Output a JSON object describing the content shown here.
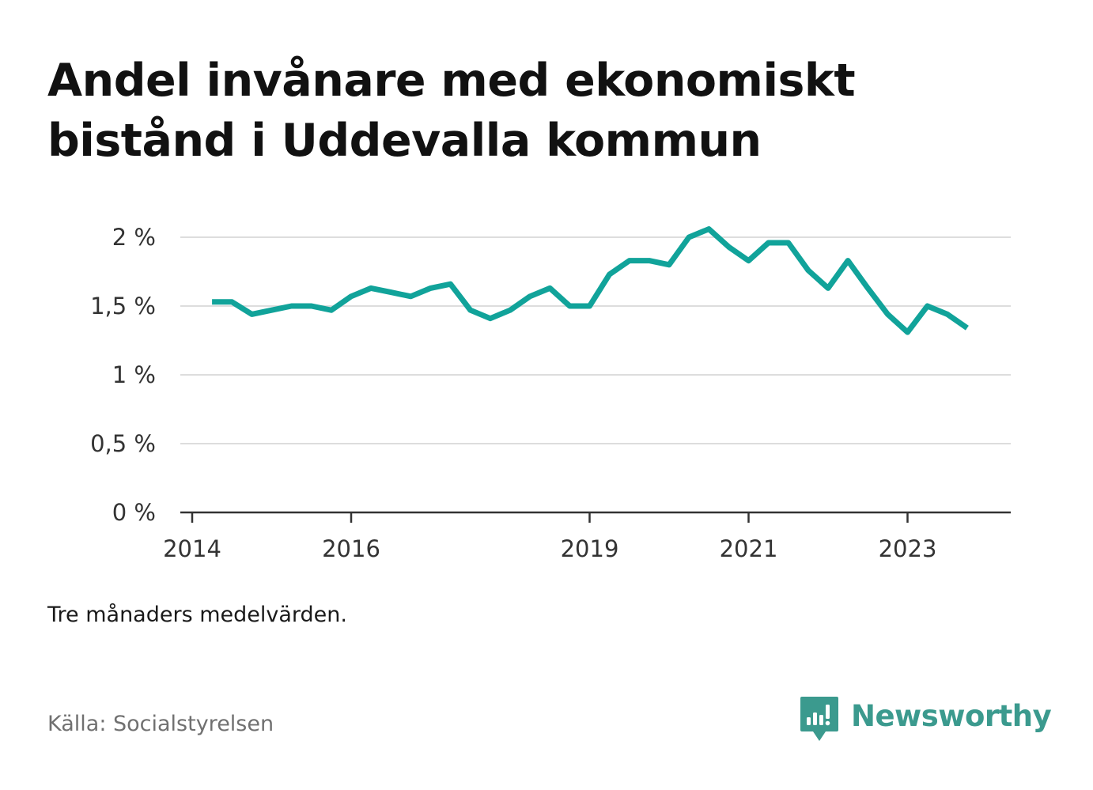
{
  "header": {
    "title_line1": "Andel invånare med ekonomiskt",
    "title_line2": "bistånd i Uddevalla kommun"
  },
  "footer": {
    "note": "Tre månaders medelvärden.",
    "source": "Källa: Socialstyrelsen",
    "brand": "Newsworthy"
  },
  "colors": {
    "line": "#11a39a",
    "grid": "#dddddd",
    "axis": "#333333",
    "brand": "#3b9a8e"
  },
  "chart_data": {
    "type": "line",
    "title": "Andel invånare med ekonomiskt bistånd i Uddevalla kommun",
    "xlabel": "",
    "ylabel": "",
    "ylim": [
      0,
      2.1
    ],
    "xlim": [
      "2014-01",
      "2024-04"
    ],
    "y_ticks": [
      {
        "value": 0,
        "label": "0 %"
      },
      {
        "value": 0.5,
        "label": "0,5 %"
      },
      {
        "value": 1,
        "label": "1 %"
      },
      {
        "value": 1.5,
        "label": "1,5 %"
      },
      {
        "value": 2,
        "label": "2 %"
      }
    ],
    "x_ticks": [
      {
        "date": "2014-01",
        "label": "2014"
      },
      {
        "date": "2016-01",
        "label": "2016"
      },
      {
        "date": "2019-01",
        "label": "2019"
      },
      {
        "date": "2021-01",
        "label": "2021"
      },
      {
        "date": "2023-01",
        "label": "2023"
      }
    ],
    "grid": true,
    "legend": "none",
    "series": [
      {
        "x": [
          "2014-04",
          "2014-07",
          "2014-10",
          "2015-01",
          "2015-04",
          "2015-07",
          "2015-10",
          "2016-01",
          "2016-04",
          "2016-07",
          "2016-10",
          "2017-01",
          "2017-04",
          "2017-07",
          "2017-10",
          "2018-01",
          "2018-04",
          "2018-07",
          "2018-10",
          "2019-01",
          "2019-04",
          "2019-07",
          "2019-10",
          "2020-01",
          "2020-04",
          "2020-07",
          "2020-10",
          "2021-01",
          "2021-04",
          "2021-07",
          "2021-10",
          "2022-01",
          "2022-04",
          "2022-07",
          "2022-10",
          "2023-01",
          "2023-04",
          "2023-07",
          "2023-10"
        ],
        "values": [
          1.53,
          1.53,
          1.44,
          1.47,
          1.5,
          1.5,
          1.47,
          1.57,
          1.63,
          1.6,
          1.57,
          1.63,
          1.66,
          1.47,
          1.41,
          1.47,
          1.57,
          1.63,
          1.5,
          1.5,
          1.73,
          1.83,
          1.83,
          1.8,
          2.0,
          2.06,
          1.93,
          1.83,
          1.96,
          1.96,
          1.76,
          1.63,
          1.83,
          1.63,
          1.44,
          1.31,
          1.5,
          1.44,
          1.34
        ]
      }
    ]
  }
}
